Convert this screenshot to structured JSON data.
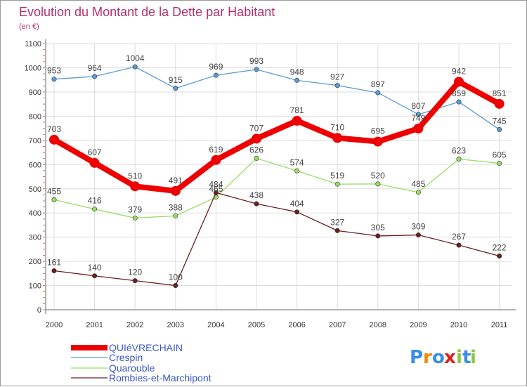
{
  "chart_data": {
    "type": "line",
    "title": "Evolution du Montant de la Dette par Habitant",
    "subtitle": "(en €)",
    "xlabel": "",
    "ylabel": "",
    "x": [
      "2000",
      "2001",
      "2002",
      "2003",
      "2004",
      "2005",
      "2006",
      "2007",
      "2008",
      "2009",
      "2010",
      "2011"
    ],
    "ylim": [
      0,
      1100
    ],
    "yticks": [
      "0",
      "100",
      "200",
      "300",
      "400",
      "500",
      "600",
      "700",
      "800",
      "900",
      "1000",
      "1100"
    ],
    "grid": true,
    "legend_position": "bottom-left",
    "series": [
      {
        "name": "QUIéVRECHAIN",
        "color": "#ee0000",
        "values": [
          703,
          607,
          510,
          491,
          619,
          707,
          781,
          710,
          695,
          749,
          942,
          851
        ]
      },
      {
        "name": "Crespin",
        "color": "#5b9bd5",
        "values": [
          953,
          964,
          1004,
          915,
          969,
          993,
          948,
          927,
          897,
          807,
          859,
          745
        ]
      },
      {
        "name": "Quarouble",
        "color": "#99dd66",
        "values": [
          455,
          416,
          379,
          388,
          465,
          626,
          574,
          519,
          520,
          485,
          623,
          605
        ]
      },
      {
        "name": "Rombies-et-Marchipont",
        "color": "#6b1f1f",
        "values": [
          161,
          140,
          120,
          100,
          484,
          438,
          404,
          327,
          305,
          309,
          267,
          222
        ]
      }
    ]
  },
  "logo": {
    "text": "Proxiti",
    "letters": [
      "P",
      "r",
      "o",
      "x",
      "i",
      "t",
      "i"
    ],
    "colors": [
      "#3a8ee6",
      "#f08a00",
      "#3a8ee6",
      "#e02020",
      "#8cc63f",
      "#3a8ee6",
      "#8cc63f"
    ]
  }
}
